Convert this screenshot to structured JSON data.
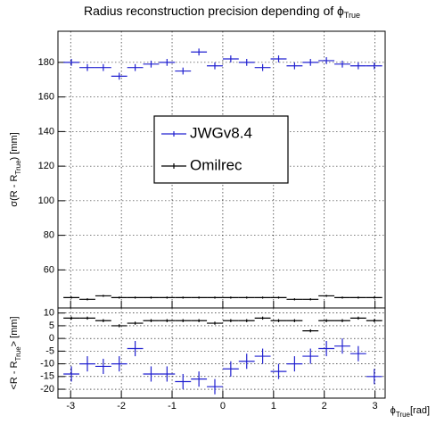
{
  "chart_data": [
    {
      "type": "errorbar",
      "title": [
        "Radius reconstruction precision depending of ϕ",
        "True"
      ],
      "ylabel": [
        "σ(R - R",
        "True",
        ") [mm]"
      ],
      "x": [
        -2.985,
        -2.67,
        -2.356,
        -2.042,
        -1.728,
        -1.414,
        -1.1,
        -0.785,
        -0.471,
        -0.157,
        0.157,
        0.471,
        0.785,
        1.1,
        1.414,
        1.728,
        2.042,
        2.356,
        2.67,
        2.985
      ],
      "xerr": 0.157,
      "xlim": [
        -3.25,
        3.2
      ],
      "xticks": [
        -3,
        -2,
        -1,
        0,
        1,
        2,
        3
      ],
      "ylim": [
        38,
        198
      ],
      "yticks": [
        60,
        80,
        100,
        120,
        140,
        160,
        180
      ],
      "grid": true,
      "legend": "center",
      "series": [
        {
          "name": "JWGv8.4",
          "color": "#2020d0",
          "yerr": 2,
          "values": [
            180,
            177,
            177,
            172,
            177,
            179,
            180,
            175,
            186,
            178,
            182,
            180,
            177,
            182,
            178,
            180,
            181,
            179,
            178,
            178
          ]
        },
        {
          "name": "Omilrec",
          "color": "#000000",
          "yerr": 0.6,
          "values": [
            44,
            43,
            45,
            44,
            44,
            44,
            44,
            44,
            44,
            44,
            44,
            44,
            44,
            44,
            43,
            43,
            45,
            44,
            44,
            44
          ]
        }
      ]
    },
    {
      "type": "errorbar",
      "xlabel": [
        "ϕ",
        "True",
        "[rad]"
      ],
      "ylabel": [
        "<R - R",
        "True",
        "> [mm]"
      ],
      "x": [
        -2.985,
        -2.67,
        -2.356,
        -2.042,
        -1.728,
        -1.414,
        -1.1,
        -0.785,
        -0.471,
        -0.157,
        0.157,
        0.471,
        0.785,
        1.1,
        1.414,
        1.728,
        2.042,
        2.356,
        2.67,
        2.985
      ],
      "xerr": 0.157,
      "xlim": [
        -3.25,
        3.2
      ],
      "xticks": [
        -3,
        -2,
        -1,
        0,
        1,
        2,
        3
      ],
      "ylim": [
        -23.5,
        12
      ],
      "yticks": [
        -20,
        -15,
        -10,
        -5,
        0,
        5,
        10
      ],
      "grid": true,
      "series": [
        {
          "color": "#000000",
          "yerr": 0.6,
          "values": [
            8,
            8,
            7,
            5,
            6,
            7,
            7,
            7,
            7,
            6,
            7,
            7,
            8,
            7,
            7,
            3,
            7,
            7,
            8,
            7
          ]
        },
        {
          "color": "#2020d0",
          "yerr": 3,
          "values": [
            -14,
            -10,
            -11,
            -10,
            -4,
            -14,
            -14,
            -17,
            -16,
            -19,
            -12,
            -9,
            -7,
            -13,
            -10,
            -7,
            -4,
            -3,
            -6,
            -15
          ]
        }
      ]
    }
  ]
}
